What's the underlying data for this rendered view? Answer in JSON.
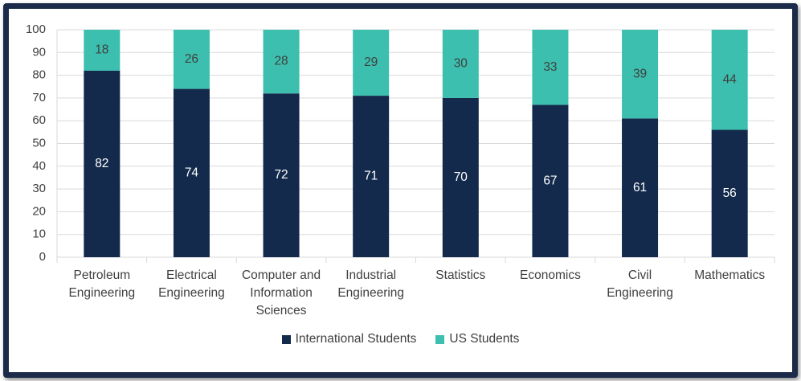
{
  "chart_data": {
    "type": "bar",
    "stacked": true,
    "categories": [
      "Petroleum Engineering",
      "Electrical Engineering",
      "Computer and Information Sciences",
      "Industrial Engineering",
      "Statistics",
      "Economics",
      "Civil Engineering",
      "Mathematics"
    ],
    "series": [
      {
        "name": "International Students",
        "color": "#132a4c",
        "values": [
          82,
          74,
          72,
          71,
          70,
          67,
          61,
          56
        ]
      },
      {
        "name": "US Students",
        "color": "#3cbfae",
        "values": [
          18,
          26,
          28,
          29,
          30,
          33,
          39,
          44
        ]
      }
    ],
    "ylim": [
      0,
      100
    ],
    "yticks": [
      0,
      10,
      20,
      30,
      40,
      50,
      60,
      70,
      80,
      90,
      100
    ],
    "grid": true,
    "legend": "bottom"
  }
}
